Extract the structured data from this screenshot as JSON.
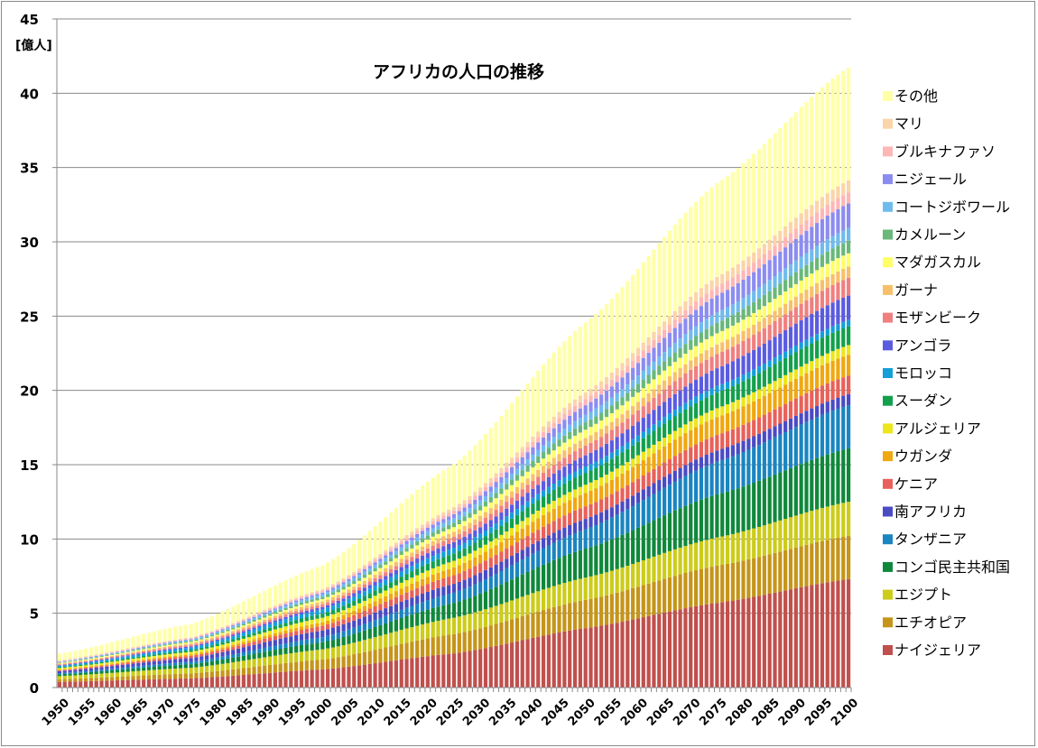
{
  "chart_data": {
    "type": "bar",
    "stacked": true,
    "title": "アフリカの人口の推移",
    "ylabel": "[億人]",
    "xlabel": "",
    "ylim": [
      0,
      45
    ],
    "y_ticks": [
      "0",
      "5",
      "10",
      "15",
      "20",
      "25",
      "30",
      "35",
      "40",
      "45"
    ],
    "x_range": [
      1950,
      2100
    ],
    "x_tick_labels": [
      "1950",
      "1955",
      "1960",
      "1965",
      "1970",
      "1975",
      "1980",
      "1985",
      "1990",
      "1995",
      "2000",
      "2005",
      "2010",
      "2015",
      "2020",
      "2025",
      "2030",
      "2035",
      "2040",
      "2045",
      "2050",
      "2055",
      "2060",
      "2065",
      "2070",
      "2075",
      "2080",
      "2085",
      "2090",
      "2095",
      "2100"
    ],
    "grid": true,
    "legend_position": "right",
    "key_years": [
      1950,
      1975,
      2000,
      2025,
      2050,
      2075,
      2100
    ],
    "series": [
      {
        "name": "ナイジェリア",
        "color": "#c0504d",
        "values": [
          0.38,
          0.62,
          1.22,
          2.3,
          4.0,
          5.7,
          7.3
        ]
      },
      {
        "name": "エチオピア",
        "color": "#c5951a",
        "values": [
          0.18,
          0.33,
          0.66,
          1.3,
          1.9,
          2.5,
          2.9
        ]
      },
      {
        "name": "エジプト",
        "color": "#cccc1a",
        "values": [
          0.21,
          0.38,
          0.69,
          1.1,
          1.5,
          1.9,
          2.3
        ]
      },
      {
        "name": "コンゴ民主共和国",
        "color": "#10883c",
        "values": [
          0.12,
          0.24,
          0.48,
          1.0,
          1.95,
          2.9,
          3.6
        ]
      },
      {
        "name": "タンザニア",
        "color": "#1a85c0",
        "values": [
          0.08,
          0.16,
          0.34,
          0.68,
          1.3,
          2.2,
          2.9
        ]
      },
      {
        "name": "南アフリカ",
        "color": "#4b4bc4",
        "values": [
          0.14,
          0.26,
          0.45,
          0.6,
          0.7,
          0.75,
          0.75
        ]
      },
      {
        "name": "ケニア",
        "color": "#e8615a",
        "values": [
          0.06,
          0.14,
          0.31,
          0.58,
          0.85,
          1.05,
          1.25
        ]
      },
      {
        "name": "ウガンダ",
        "color": "#f0a810",
        "values": [
          0.05,
          0.11,
          0.24,
          0.52,
          0.9,
          1.2,
          1.4
        ]
      },
      {
        "name": "アルジェリア",
        "color": "#ede61a",
        "values": [
          0.09,
          0.16,
          0.31,
          0.45,
          0.55,
          0.6,
          0.65
        ]
      },
      {
        "name": "スーダン",
        "color": "#13a04d",
        "values": [
          0.06,
          0.12,
          0.27,
          0.5,
          0.8,
          1.05,
          1.25
        ]
      },
      {
        "name": "モロッコ",
        "color": "#149fd8",
        "values": [
          0.09,
          0.17,
          0.29,
          0.38,
          0.43,
          0.44,
          0.43
        ]
      },
      {
        "name": "アンゴラ",
        "color": "#5b5be0",
        "values": [
          0.04,
          0.08,
          0.16,
          0.38,
          0.75,
          1.2,
          1.65
        ]
      },
      {
        "name": "モザンビーク",
        "color": "#f08080",
        "values": [
          0.06,
          0.11,
          0.18,
          0.35,
          0.65,
          0.95,
          1.2
        ]
      },
      {
        "name": "ガーナ",
        "color": "#f7c06a",
        "values": [
          0.05,
          0.1,
          0.19,
          0.34,
          0.52,
          0.65,
          0.75
        ]
      },
      {
        "name": "マダガスカル",
        "color": "#ffff66",
        "values": [
          0.04,
          0.08,
          0.16,
          0.32,
          0.55,
          0.75,
          0.9
        ]
      },
      {
        "name": "カメルーン",
        "color": "#6ab87a",
        "values": [
          0.04,
          0.08,
          0.16,
          0.3,
          0.5,
          0.7,
          0.85
        ]
      },
      {
        "name": "コートジボワール",
        "color": "#6fbcec",
        "values": [
          0.03,
          0.07,
          0.17,
          0.3,
          0.5,
          0.7,
          0.85
        ]
      },
      {
        "name": "ニジェール",
        "color": "#8c8cf0",
        "values": [
          0.02,
          0.05,
          0.11,
          0.27,
          0.65,
          1.15,
          1.65
        ]
      },
      {
        "name": "ブルキナファソ",
        "color": "#ffb6b6",
        "values": [
          0.04,
          0.06,
          0.12,
          0.24,
          0.42,
          0.6,
          0.75
        ]
      },
      {
        "name": "マリ",
        "color": "#fbd4a8",
        "values": [
          0.05,
          0.06,
          0.11,
          0.23,
          0.45,
          0.65,
          0.8
        ]
      },
      {
        "name": "その他",
        "color": "#ffffa8",
        "values": [
          0.45,
          0.9,
          1.6,
          2.9,
          4.7,
          6.3,
          7.6
        ]
      }
    ]
  }
}
